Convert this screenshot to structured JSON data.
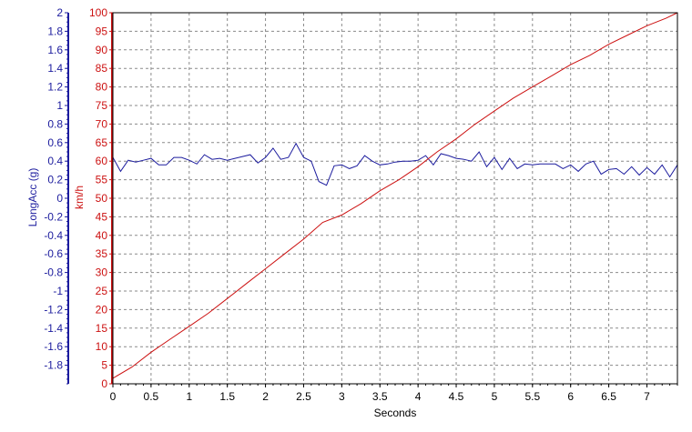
{
  "chart_data": {
    "type": "line",
    "title": "",
    "xlabel": "Seconds",
    "xlim": [
      0,
      7.4
    ],
    "x_ticks": [
      "0",
      "0.5",
      "1",
      "1.5",
      "2",
      "2.5",
      "3",
      "3.5",
      "4",
      "4.5",
      "5",
      "5.5",
      "6",
      "6.5",
      "7"
    ],
    "grid": true,
    "y_left": {
      "label": "LongAcc (g)",
      "color": "#1c1c9e",
      "ylim": [
        -2,
        2
      ],
      "ticks": [
        "2",
        "1.8",
        "1.6",
        "1.4",
        "1.2",
        "1",
        "0.8",
        "0.6",
        "0.4",
        "0.2",
        "0",
        "-0.2",
        "-0.4",
        "-0.6",
        "-0.8",
        "-1",
        "-1.2",
        "-1.4",
        "-1.6",
        "-1.8"
      ]
    },
    "y_right": {
      "label": "km/h",
      "color": "#cc1111",
      "ylim": [
        0,
        100
      ],
      "ticks": [
        "100",
        "95",
        "90",
        "85",
        "80",
        "75",
        "70",
        "65",
        "60",
        "55",
        "50",
        "45",
        "40",
        "35",
        "30",
        "25",
        "20",
        "15",
        "10",
        "5",
        "0"
      ]
    },
    "series": [
      {
        "axis": "left",
        "color": "#1c1c9e",
        "x": [
          0,
          0.1,
          0.2,
          0.3,
          0.4,
          0.5,
          0.6,
          0.7,
          0.8,
          0.9,
          1.0,
          1.1,
          1.2,
          1.3,
          1.4,
          1.5,
          1.6,
          1.7,
          1.8,
          1.9,
          2.0,
          2.1,
          2.2,
          2.3,
          2.4,
          2.5,
          2.6,
          2.7,
          2.8,
          2.9,
          3.0,
          3.1,
          3.2,
          3.3,
          3.4,
          3.5,
          3.6,
          3.7,
          3.8,
          3.9,
          4.0,
          4.1,
          4.2,
          4.3,
          4.4,
          4.5,
          4.6,
          4.7,
          4.8,
          4.9,
          5.0,
          5.1,
          5.2,
          5.3,
          5.4,
          5.5,
          5.6,
          5.7,
          5.8,
          5.9,
          6.0,
          6.1,
          6.2,
          6.3,
          6.4,
          6.5,
          6.6,
          6.7,
          6.8,
          6.9,
          7.0,
          7.1,
          7.2,
          7.3,
          7.4
        ],
        "values": [
          0.44,
          0.29,
          0.41,
          0.39,
          0.41,
          0.43,
          0.36,
          0.36,
          0.44,
          0.44,
          0.41,
          0.37,
          0.47,
          0.42,
          0.43,
          0.41,
          0.43,
          0.45,
          0.47,
          0.38,
          0.44,
          0.54,
          0.42,
          0.44,
          0.59,
          0.44,
          0.4,
          0.18,
          0.14,
          0.35,
          0.36,
          0.32,
          0.35,
          0.46,
          0.4,
          0.36,
          0.37,
          0.39,
          0.4,
          0.4,
          0.41,
          0.46,
          0.36,
          0.48,
          0.46,
          0.43,
          0.42,
          0.4,
          0.5,
          0.34,
          0.44,
          0.31,
          0.43,
          0.32,
          0.37,
          0.36,
          0.37,
          0.37,
          0.37,
          0.32,
          0.36,
          0.29,
          0.37,
          0.4,
          0.26,
          0.31,
          0.32,
          0.26,
          0.34,
          0.25,
          0.33,
          0.26,
          0.36,
          0.23,
          0.36
        ]
      },
      {
        "axis": "right",
        "color": "#cc1111",
        "x": [
          0,
          0.25,
          0.5,
          0.75,
          1.0,
          1.25,
          1.5,
          1.75,
          2.0,
          2.25,
          2.5,
          2.75,
          3.0,
          3.25,
          3.5,
          3.75,
          4.0,
          4.25,
          4.5,
          4.75,
          5.0,
          5.25,
          5.5,
          5.75,
          6.0,
          6.25,
          6.5,
          6.75,
          7.0,
          7.25,
          7.4
        ],
        "values": [
          1.5,
          4.5,
          8.5,
          12.0,
          15.5,
          19.0,
          23.0,
          27.0,
          31.0,
          35.0,
          39.0,
          43.5,
          45.5,
          48.5,
          52.0,
          55.0,
          58.5,
          62.5,
          66.0,
          70.0,
          73.5,
          77.0,
          80.0,
          83.0,
          86.0,
          88.5,
          91.5,
          94.0,
          96.5,
          98.5,
          100.0
        ]
      }
    ]
  }
}
